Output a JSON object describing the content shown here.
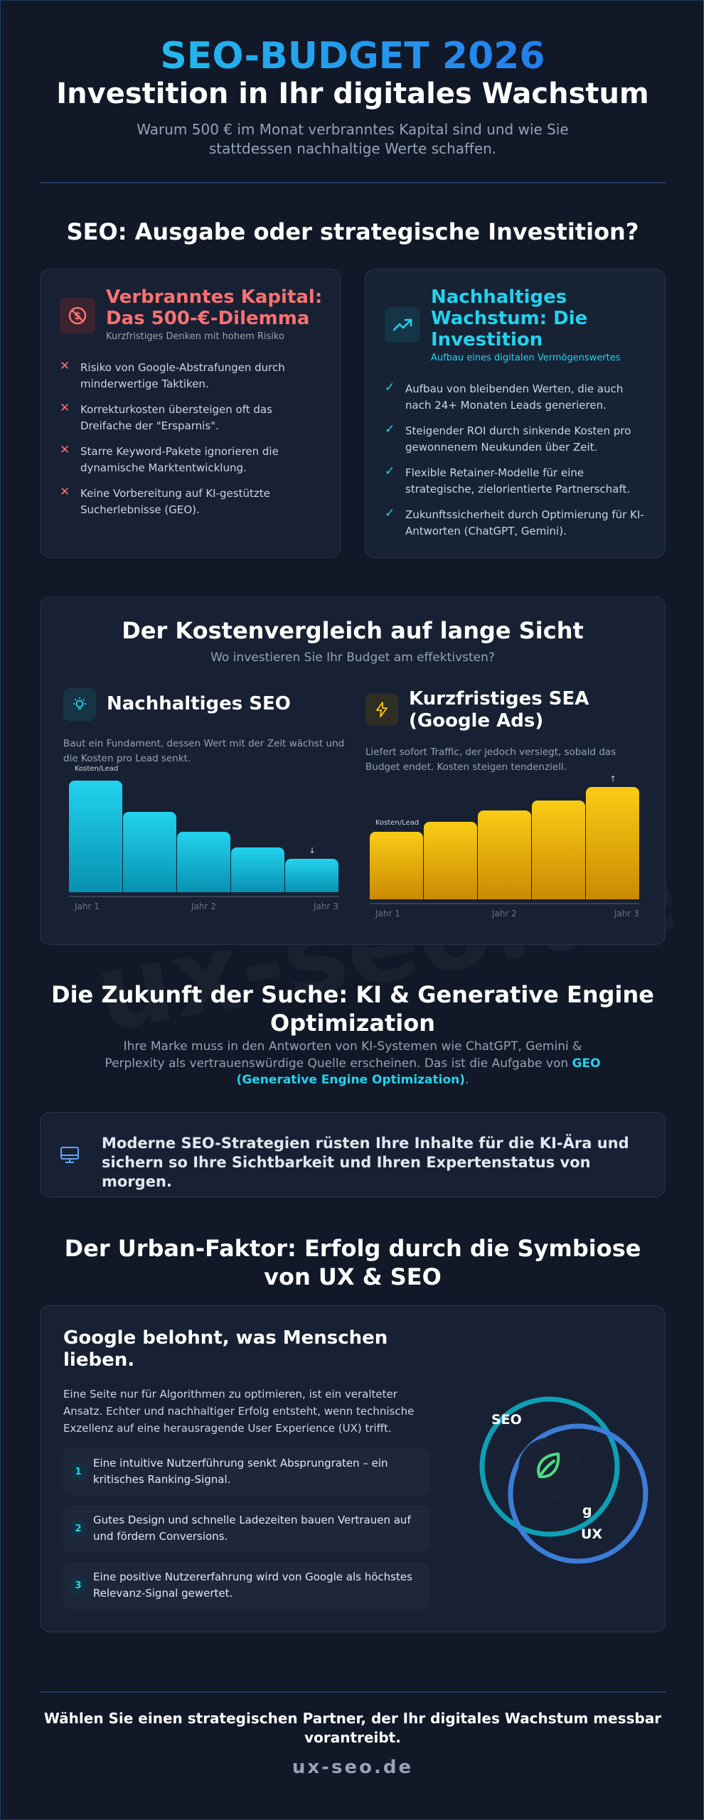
{
  "hero": {
    "title": "SEO-BUDGET 2026",
    "subtitle": "Investition in Ihr digitales Wachstum",
    "description": "Warum 500 € im Monat verbranntes Kapital sind und wie Sie stattdessen nachhaltige Werte schaffen."
  },
  "section1": {
    "title": "SEO: Ausgabe oder strategische Investition?",
    "left": {
      "icon": "no-money-icon",
      "title": "Verbranntes Kapital: Das 500-€-Dilemma",
      "subtitle": "Kurzfristiges Denken mit hohem Risiko",
      "items": [
        "Risiko von Google-Abstrafungen durch minderwertige Taktiken.",
        "Korrekturkosten übersteigen oft das Dreifache der \"Ersparnis\".",
        "Starre Keyword-Pakete ignorieren die dynamische Marktentwicklung.",
        "Keine Vorbereitung auf KI-gestützte Sucherlebnisse (GEO)."
      ],
      "marker": "✕",
      "accent": "#f87171"
    },
    "right": {
      "icon": "trending-up-icon",
      "title": "Nachhaltiges Wachstum: Die Investition",
      "subtitle": "Aufbau eines digitalen Vermögenswertes",
      "items": [
        "Aufbau von bleibenden Werten, die auch nach 24+ Monaten Leads generieren.",
        "Steigender ROI durch sinkende Kosten pro gewonnenem Neukunden über Zeit.",
        "Flexible Retainer-Modelle für eine strategische, zielorientierte Partnerschaft.",
        "Zukunftssicherheit durch Optimierung für KI-Antworten (ChatGPT, Gemini)."
      ],
      "marker": "✓",
      "accent": "#22d3ee"
    }
  },
  "comparison": {
    "title": "Der Kostenvergleich auf lange Sicht",
    "subtitle": "Wo investieren Sie Ihr Budget am effektivsten?",
    "seo": {
      "icon": "lightbulb-icon",
      "title": "Nachhaltiges SEO",
      "description": "Baut ein Fundament, dessen Wert mit der Zeit wächst und die Kosten pro Lead senkt.",
      "label": "Kosten/Lead",
      "arrow": "↓",
      "x_labels": [
        "Jahr 1",
        "Jahr 2",
        "Jahr 3"
      ],
      "values": [
        100,
        72,
        54,
        40,
        30
      ]
    },
    "sea": {
      "icon": "lightning-icon",
      "title": "Kurzfristiges SEA (Google Ads)",
      "description": "Liefert sofort Traffic, der jedoch versiegt, sobald das Budget endet. Kosten steigen tendenziell.",
      "label": "Kosten/Lead",
      "arrow": "↑",
      "x_labels": [
        "Jahr 1",
        "Jahr 2",
        "Jahr 3"
      ],
      "values": [
        60,
        69,
        79,
        88,
        100
      ]
    }
  },
  "chart_data": [
    {
      "type": "bar",
      "title": "Nachhaltiges SEO",
      "ylabel": "Kosten/Lead",
      "x_labels": [
        "Jahr 1",
        "Jahr 2",
        "Jahr 3"
      ],
      "values": [
        100,
        72,
        54,
        40,
        30
      ]
    },
    {
      "type": "bar",
      "title": "Kurzfristiges SEA (Google Ads)",
      "ylabel": "Kosten/Lead",
      "x_labels": [
        "Jahr 1",
        "Jahr 2",
        "Jahr 3"
      ],
      "values": [
        60,
        69,
        79,
        88,
        100
      ]
    }
  ],
  "future": {
    "title": "Die Zukunft der Suche: KI & Generative Engine Optimization",
    "text_before": "Ihre Marke muss in den Antworten von KI-Systemen wie ChatGPT, Gemini & Perplexity als vertrauenswürdige Quelle erscheinen. Das ist die Aufgabe von",
    "highlight": "GEO (Generative Engine Optimization)",
    "text_after": ".",
    "callout": "Moderne SEO-Strategien rüsten Ihre Inhalte für die KI-Ära und sichern so Ihre Sichtbarkeit und Ihren Expertenstatus von morgen.",
    "callout_icon": "monitor-icon"
  },
  "urban": {
    "title": "Der Urban-Faktor: Erfolg durch die Symbiose von UX & SEO",
    "card_title": "Google belohnt, was Menschen lieben.",
    "card_text": "Eine Seite nur für Algorithmen zu optimieren, ist ein veralteter Ansatz. Echter und nachhaltiger Erfolg entsteht, wenn technische Exzellenz auf eine herausragende User Experience (UX) trifft.",
    "steps": [
      {
        "num": "1",
        "text": "Eine intuitive Nutzerführung senkt Absprungraten – ein kritisches Ranking-Signal."
      },
      {
        "num": "2",
        "text": "Gutes Design und schnelle Ladezeiten bauen Vertrauen auf und fördern Conversions."
      },
      {
        "num": "3",
        "text": "Eine positive Nutzererfahrung wird von Google als höchstes Relevanz-Signal gewertet."
      }
    ],
    "venn": {
      "left": "SEO",
      "right": "UX",
      "overlap_char": "g",
      "icon": "leaf-icon"
    },
    "colors": {
      "seo": "#0e9fb5",
      "ux": "#3b7dd8",
      "leaf": "#4ade80"
    }
  },
  "footer": {
    "cta": "Wählen Sie einen strategischen Partner, der Ihr digitales Wachstum messbar vorantreibt.",
    "brand": "ux-seo.de",
    "watermark": "ux-seo.de"
  }
}
